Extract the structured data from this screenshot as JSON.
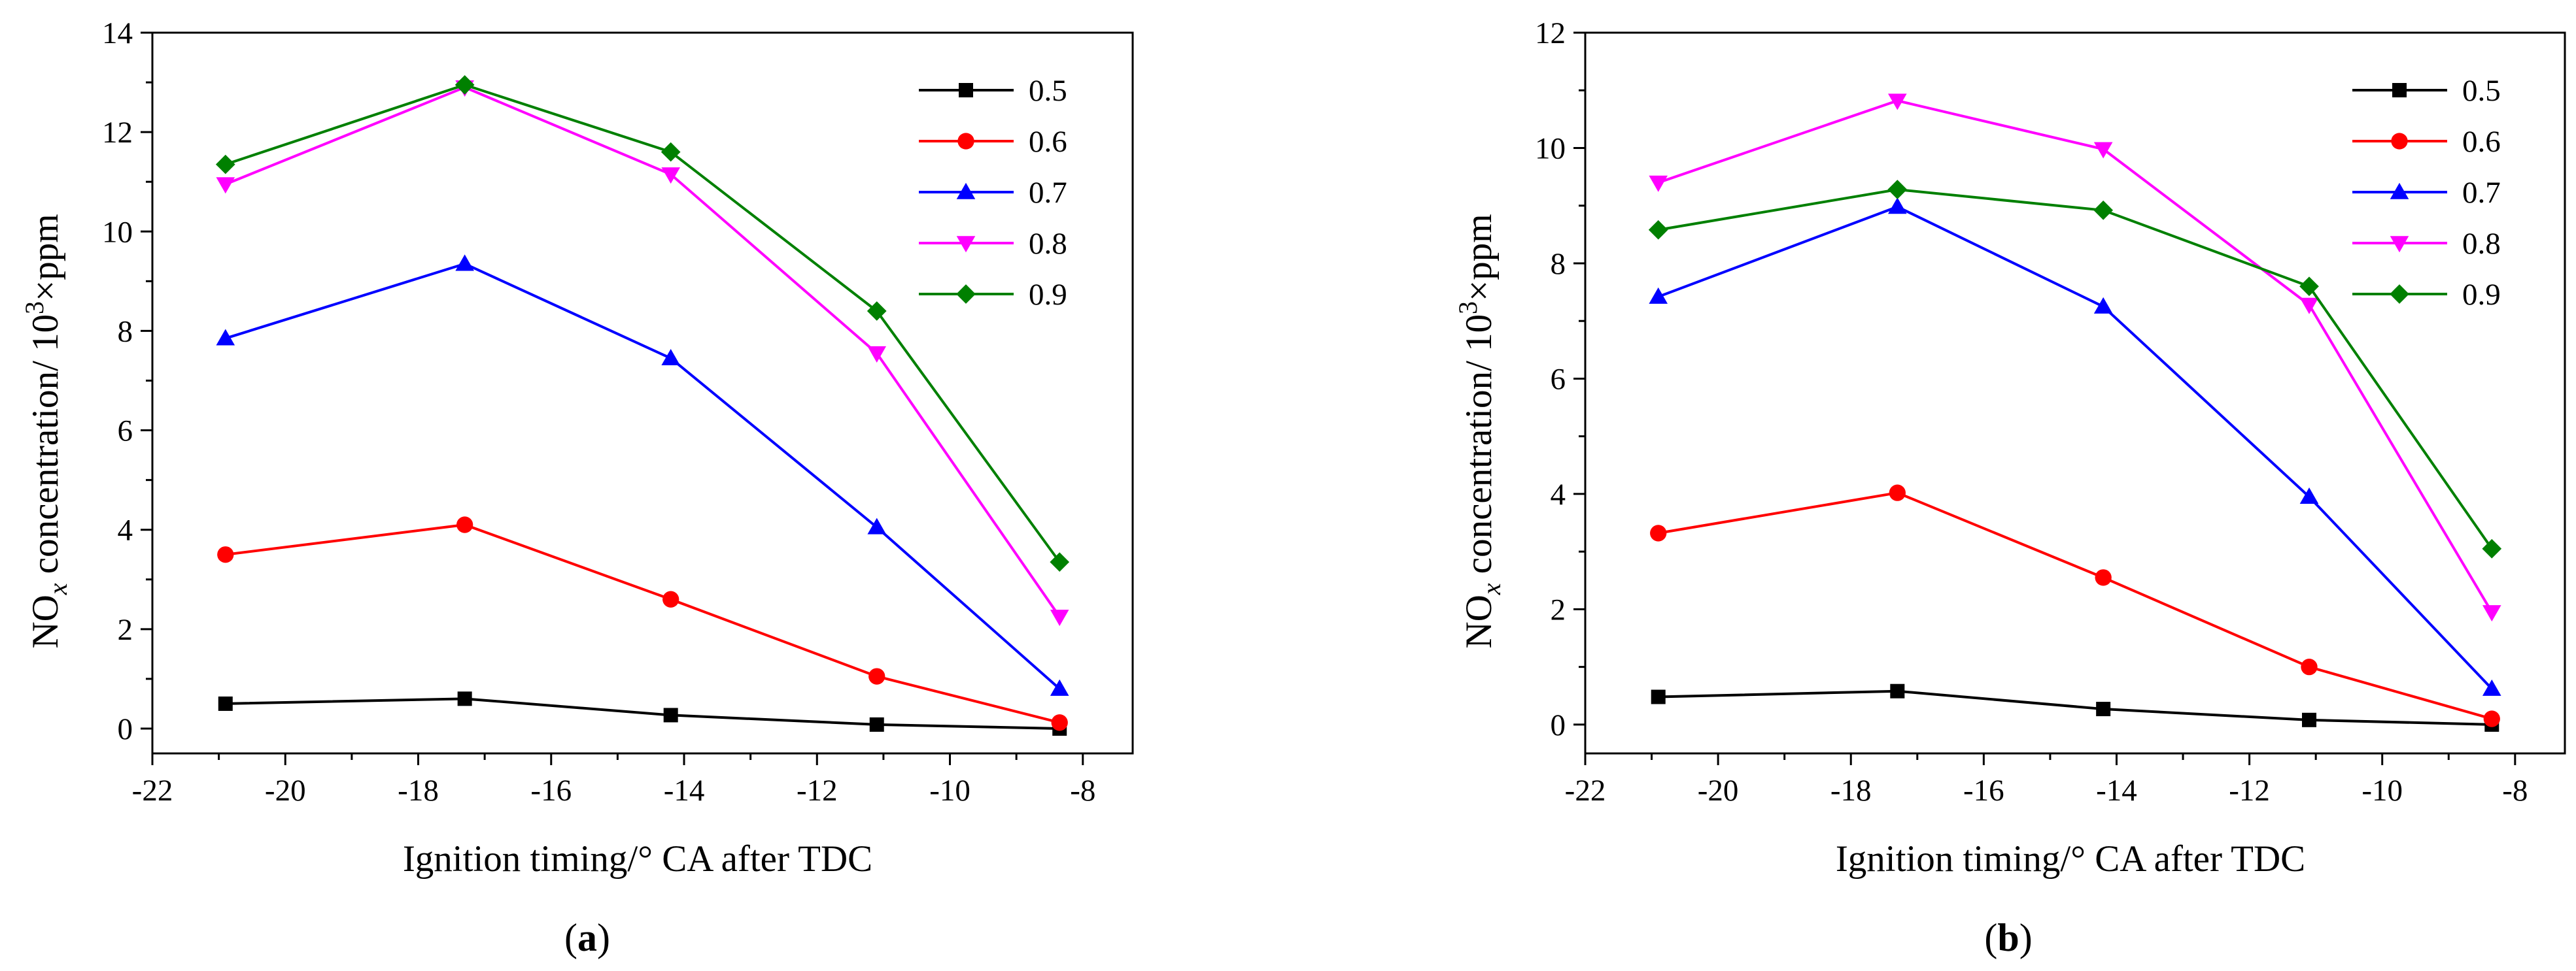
{
  "chart_data": [
    {
      "id": "a",
      "type": "line",
      "caption": "a",
      "xlabel": "Ignition timing/° CA after TDC",
      "ylabel_prefix": "NO",
      "ylabel_sub": "x",
      "ylabel_mid": " concentration/ 10",
      "ylabel_sup": "3",
      "ylabel_suffix": "×ppm",
      "xlim": [
        -22,
        -7.25
      ],
      "ylim": [
        -0.5,
        14
      ],
      "xticks": [
        -22,
        -20,
        -18,
        -16,
        -14,
        -12,
        -10,
        -8
      ],
      "yticks": [
        0,
        2,
        4,
        6,
        8,
        10,
        12,
        14
      ],
      "x": [
        -20.9,
        -17.3,
        -14.2,
        -11.1,
        -8.35
      ],
      "legend_position": "top-right",
      "series": [
        {
          "name": "0.5",
          "color": "#000000",
          "marker": "square",
          "values": [
            0.5,
            0.6,
            0.27,
            0.08,
            0.0
          ]
        },
        {
          "name": "0.6",
          "color": "#ff0000",
          "marker": "circle",
          "values": [
            3.5,
            4.1,
            2.6,
            1.05,
            0.12
          ]
        },
        {
          "name": "0.7",
          "color": "#0000ff",
          "marker": "triangle-up",
          "values": [
            7.85,
            9.35,
            7.45,
            4.05,
            0.8
          ]
        },
        {
          "name": "0.8",
          "color": "#ff00ff",
          "marker": "triangle-down",
          "values": [
            10.95,
            12.9,
            11.15,
            7.55,
            2.25
          ]
        },
        {
          "name": "0.9",
          "color": "#008000",
          "marker": "diamond",
          "values": [
            11.35,
            12.95,
            11.6,
            8.4,
            3.35
          ]
        }
      ]
    },
    {
      "id": "b",
      "type": "line",
      "caption": "b",
      "xlabel": "Ignition timing/° CA after TDC",
      "ylabel_prefix": "NO",
      "ylabel_sub": "x",
      "ylabel_mid": " concentration/ 10",
      "ylabel_sup": "3",
      "ylabel_suffix": "×ppm",
      "xlim": [
        -22,
        -7.25
      ],
      "ylim": [
        -0.5,
        12
      ],
      "xticks": [
        -22,
        -20,
        -18,
        -16,
        -14,
        -12,
        -10,
        -8
      ],
      "yticks": [
        0,
        2,
        4,
        6,
        8,
        10,
        12
      ],
      "x": [
        -20.9,
        -17.3,
        -14.2,
        -11.1,
        -8.35
      ],
      "legend_position": "top-right",
      "series": [
        {
          "name": "0.5",
          "color": "#000000",
          "marker": "square",
          "values": [
            0.48,
            0.58,
            0.27,
            0.08,
            0.0
          ]
        },
        {
          "name": "0.6",
          "color": "#ff0000",
          "marker": "circle",
          "values": [
            3.32,
            4.02,
            2.55,
            1.0,
            0.1
          ]
        },
        {
          "name": "0.7",
          "color": "#0000ff",
          "marker": "triangle-up",
          "values": [
            7.42,
            8.98,
            7.25,
            3.95,
            0.62
          ]
        },
        {
          "name": "0.8",
          "color": "#ff00ff",
          "marker": "triangle-down",
          "values": [
            9.4,
            10.82,
            9.98,
            7.28,
            1.95
          ]
        },
        {
          "name": "0.9",
          "color": "#008000",
          "marker": "diamond",
          "values": [
            8.58,
            9.28,
            8.92,
            7.6,
            3.05
          ]
        }
      ]
    }
  ]
}
